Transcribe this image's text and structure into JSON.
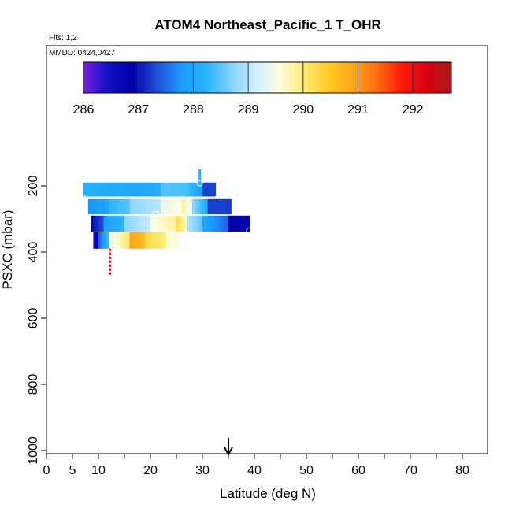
{
  "chart_data": {
    "type": "heatmap",
    "title": "ATOM4 Northeast_Pacific_1 T_OHR",
    "annotations": [
      "Flts: 1,2",
      "MMDD: 0424,0427"
    ],
    "xlabel": "Latitude (deg N)",
    "ylabel": "PSXC (mbar)",
    "xlim": [
      0,
      85
    ],
    "ylim": [
      1000,
      0
    ],
    "y_reversed": true,
    "x_ticks": [
      0,
      5,
      10,
      20,
      30,
      40,
      50,
      60,
      70,
      80
    ],
    "x_tick_labels": [
      "0",
      "5",
      "10",
      "20",
      "30",
      "40",
      "50",
      "60",
      "70",
      "80"
    ],
    "x_minor_ticks": [
      15,
      25,
      35,
      45,
      55,
      65,
      75,
      85
    ],
    "y_ticks": [
      200,
      400,
      600,
      800,
      1000
    ],
    "y_tick_labels": [
      "200",
      "400",
      "600",
      "800",
      "1000"
    ],
    "colorbar": {
      "min": 286,
      "max": 292.7,
      "ticks": [
        286,
        287,
        288,
        289,
        290,
        291,
        292
      ],
      "tick_labels": [
        "286",
        "287",
        "288",
        "289",
        "290",
        "291",
        "292"
      ],
      "palette": [
        "#7a1fe0",
        "#1010c8",
        "#0000a8",
        "#1f4fd8",
        "#1a9bff",
        "#28b4ff",
        "#7fd2ff",
        "#cfeeff",
        "#fffde0",
        "#ffea70",
        "#ffcc22",
        "#ffa31a",
        "#ff6a10",
        "#ff1a0a",
        "#d80010",
        "#a81a1a"
      ]
    },
    "bands": [
      {
        "p_top": 190,
        "p_bot": 232,
        "segments": [
          {
            "lat": [
              7,
              12
            ],
            "t": 288.15
          },
          {
            "lat": [
              12,
              17
            ],
            "t": 288.05
          },
          {
            "lat": [
              17,
              22
            ],
            "t": 287.95
          },
          {
            "lat": [
              22,
              27
            ],
            "t": 288.45
          },
          {
            "lat": [
              27,
              30
            ],
            "t": 288.35
          },
          {
            "lat": [
              30,
              32.5
            ],
            "t": 287.25
          }
        ]
      },
      {
        "p_top": 240,
        "p_bot": 286,
        "segments": [
          {
            "lat": [
              8,
              12
            ],
            "t": 287.75
          },
          {
            "lat": [
              12,
              16
            ],
            "t": 288.25
          },
          {
            "lat": [
              16,
              22
            ],
            "t": 288.75
          },
          {
            "lat": [
              22,
              26
            ],
            "t": 289.35
          },
          {
            "lat": [
              26,
              28
            ],
            "t": 289.85
          },
          {
            "lat": [
              28,
              31
            ],
            "t": 288.75
          },
          {
            "lat": [
              31,
              35.5
            ],
            "t": 287.25
          }
        ]
      },
      {
        "p_top": 290,
        "p_bot": 338,
        "segments": [
          {
            "lat": [
              8.5,
              11
            ],
            "t": 286.95
          },
          {
            "lat": [
              11,
              15
            ],
            "t": 287.85
          },
          {
            "lat": [
              15,
              20
            ],
            "t": 288.75
          },
          {
            "lat": [
              20,
              25
            ],
            "t": 289.55
          },
          {
            "lat": [
              25,
              27
            ],
            "t": 290.2
          },
          {
            "lat": [
              27,
              30
            ],
            "t": 288.95
          },
          {
            "lat": [
              30,
              35
            ],
            "t": 287.95
          },
          {
            "lat": [
              35,
              39
            ],
            "t": 286.85
          }
        ]
      },
      {
        "p_top": 340,
        "p_bot": 390,
        "segments": [
          {
            "lat": [
              9,
              10
            ],
            "t": 286.5
          },
          {
            "lat": [
              10,
              12
            ],
            "t": 287.45
          },
          {
            "lat": [
              12,
              16
            ],
            "t": 289.4
          },
          {
            "lat": [
              16,
              19
            ],
            "t": 290.9
          },
          {
            "lat": [
              19,
              23
            ],
            "t": 290.25
          },
          {
            "lat": [
              23,
              25.5
            ],
            "t": 289.6
          }
        ]
      }
    ],
    "vertical_segments": [
      {
        "lat": 29.5,
        "p": [
          150,
          200
        ],
        "t": 288.15
      },
      {
        "lat": 12.2,
        "p": [
          390,
          470
        ],
        "t": 292.5
      }
    ],
    "markers": [
      {
        "lat": 7,
        "p": 235
      },
      {
        "lat": 21,
        "p": 285
      },
      {
        "lat": 29.5,
        "p": 192
      },
      {
        "lat": 39,
        "p": 335
      },
      {
        "lat": 26.5,
        "p": 362
      },
      {
        "lat": 9,
        "p": 400
      }
    ],
    "arrow_lat": 35
  }
}
